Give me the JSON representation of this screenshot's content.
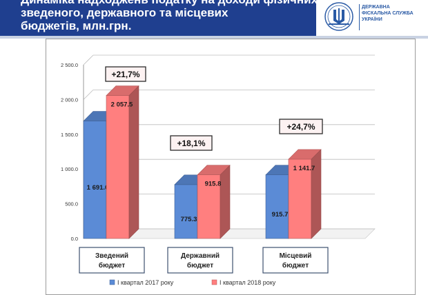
{
  "header": {
    "title_line1": "Динаміка надходжень податку на доходи фізичних осіб до",
    "title_line2": "зведеного, державного та місцевих",
    "title_line3": "бюджетів, млн.грн."
  },
  "logo": {
    "line1": "ДЕРЖАВНА",
    "line2": "ФІСКАЛЬНА СЛУЖБА",
    "line3": "УКРАЇНИ"
  },
  "colors": {
    "header_bg": "#1f3f8f",
    "series1": "#5b8bd6",
    "series2": "#ff7f7f"
  },
  "chart_data": {
    "type": "bar",
    "categories": [
      "Зведений бюджет",
      "Державний бюджет",
      "Місцевий бюджет"
    ],
    "category_lines": [
      [
        "Зведений",
        "бюджет"
      ],
      [
        "Державний",
        "бюджет"
      ],
      [
        "Місцевий",
        "бюджет"
      ]
    ],
    "series": [
      {
        "name": "I квартал 2017 року",
        "values": [
          1691.0,
          775.3,
          915.7
        ],
        "labels": [
          "1 691.0",
          "775.3",
          "915.7"
        ],
        "color": "#5b8bd6"
      },
      {
        "name": "I квартал 2018 року",
        "values": [
          2057.5,
          915.8,
          1141.7
        ],
        "labels": [
          "2 057.5",
          "915.8",
          "1 141.7"
        ],
        "color": "#ff7f7f"
      }
    ],
    "growth_labels": [
      "+21,7%",
      "+18,1%",
      "+24,7%"
    ],
    "ylim": [
      0,
      2500
    ],
    "yticks": [
      "0.0",
      "500.0",
      "1 000.0",
      "1 500.0",
      "2 000.0",
      "2 500.0"
    ],
    "ytick_values": [
      0,
      500,
      1000,
      1500,
      2000,
      2500
    ],
    "grid": true,
    "three_d": true,
    "legend_position": "bottom"
  }
}
